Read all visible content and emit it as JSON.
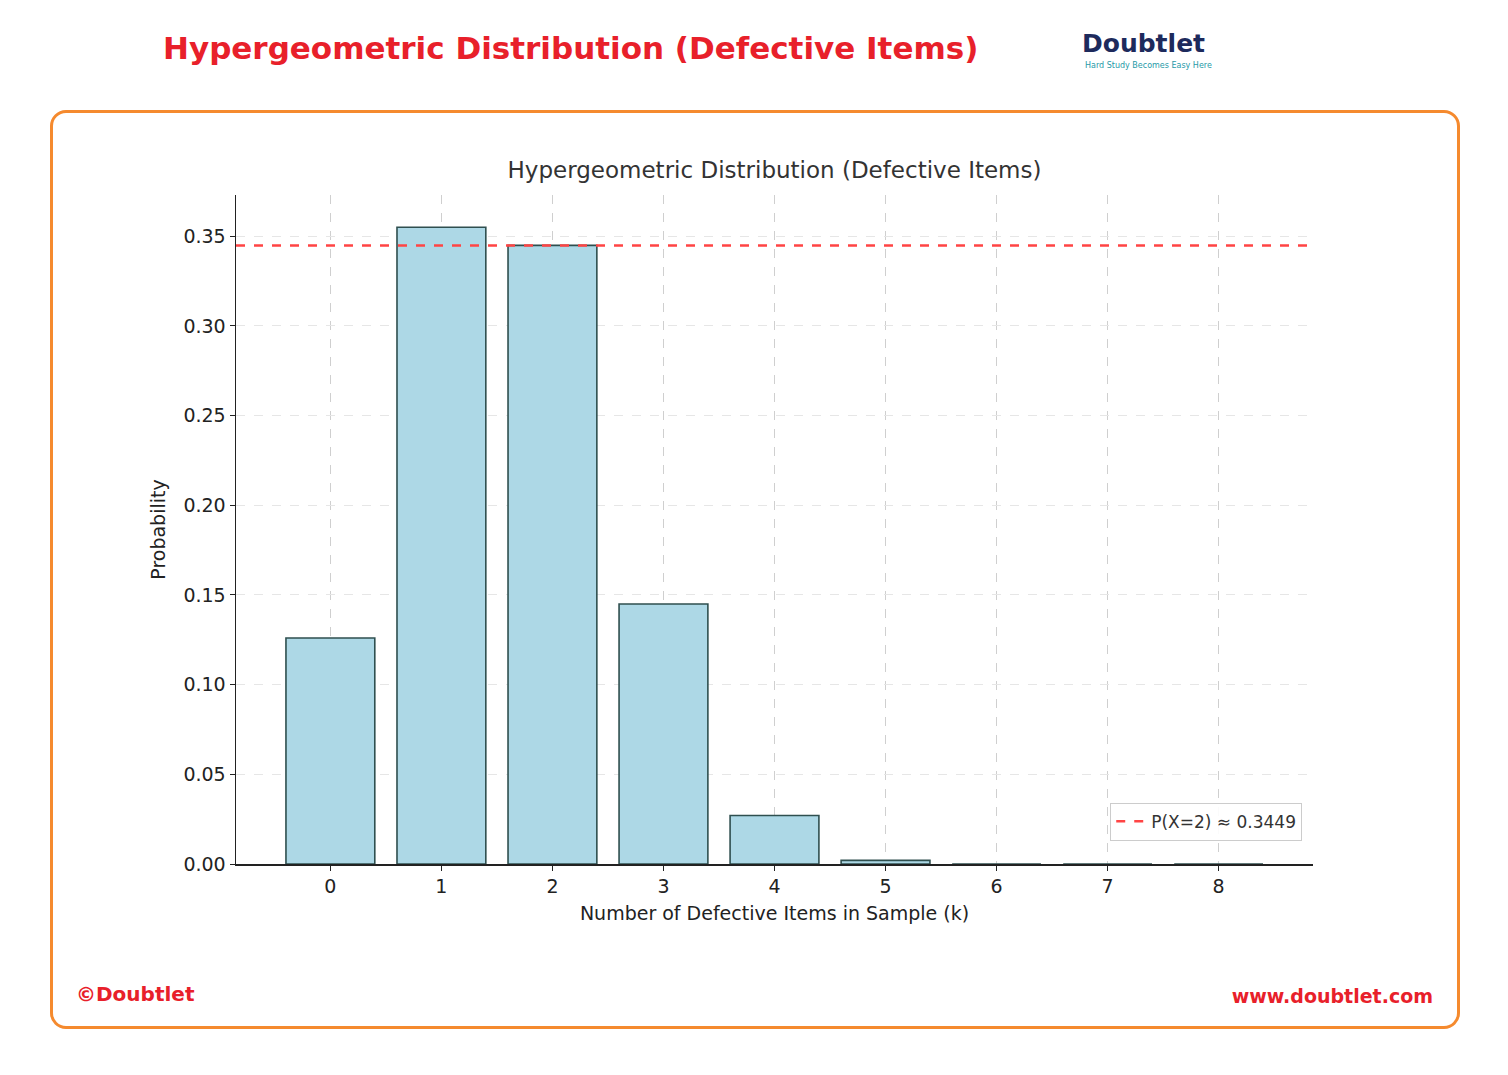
{
  "header": {
    "title": "Hypergeometric Distribution (Defective Items)",
    "logo": "Doubtlet",
    "tagline": "Hard Study Becomes Easy Here"
  },
  "footer": {
    "copyright": "©Doubtlet",
    "url": "www.doubtlet.com"
  },
  "chart_data": {
    "type": "bar",
    "title": "Hypergeometric Distribution (Defective Items)",
    "x_label": "Number of Defective Items in Sample (k)",
    "y_label": "Probability",
    "x": [
      0,
      1,
      2,
      3,
      4,
      5,
      6,
      7,
      8
    ],
    "values": [
      0.126,
      0.355,
      0.3449,
      0.145,
      0.027,
      0.002,
      0,
      0,
      0
    ],
    "color": "#add8e6",
    "xlim": [
      -0.85,
      8.85
    ],
    "xticks": [
      0,
      1,
      2,
      3,
      4,
      5,
      6,
      7,
      8
    ],
    "ylim": [
      0,
      0.373
    ],
    "yticks": [
      {
        "value": 0,
        "label": "0.00"
      },
      {
        "value": 0.05,
        "label": "0.05"
      },
      {
        "value": 0.1,
        "label": "0.10"
      },
      {
        "value": 0.15,
        "label": "0.15"
      },
      {
        "value": 0.2,
        "label": "0.20"
      },
      {
        "value": 0.25,
        "label": "0.25"
      },
      {
        "value": 0.3,
        "label": "0.30"
      },
      {
        "value": 0.35,
        "label": "0.35"
      }
    ],
    "reference_lines": [
      {
        "name": "P(X=2) ≈ 0.3449",
        "value": 0.3449,
        "color": "#ff4444",
        "line_style": "dashed"
      }
    ],
    "grid": true,
    "legend": "lower right"
  }
}
